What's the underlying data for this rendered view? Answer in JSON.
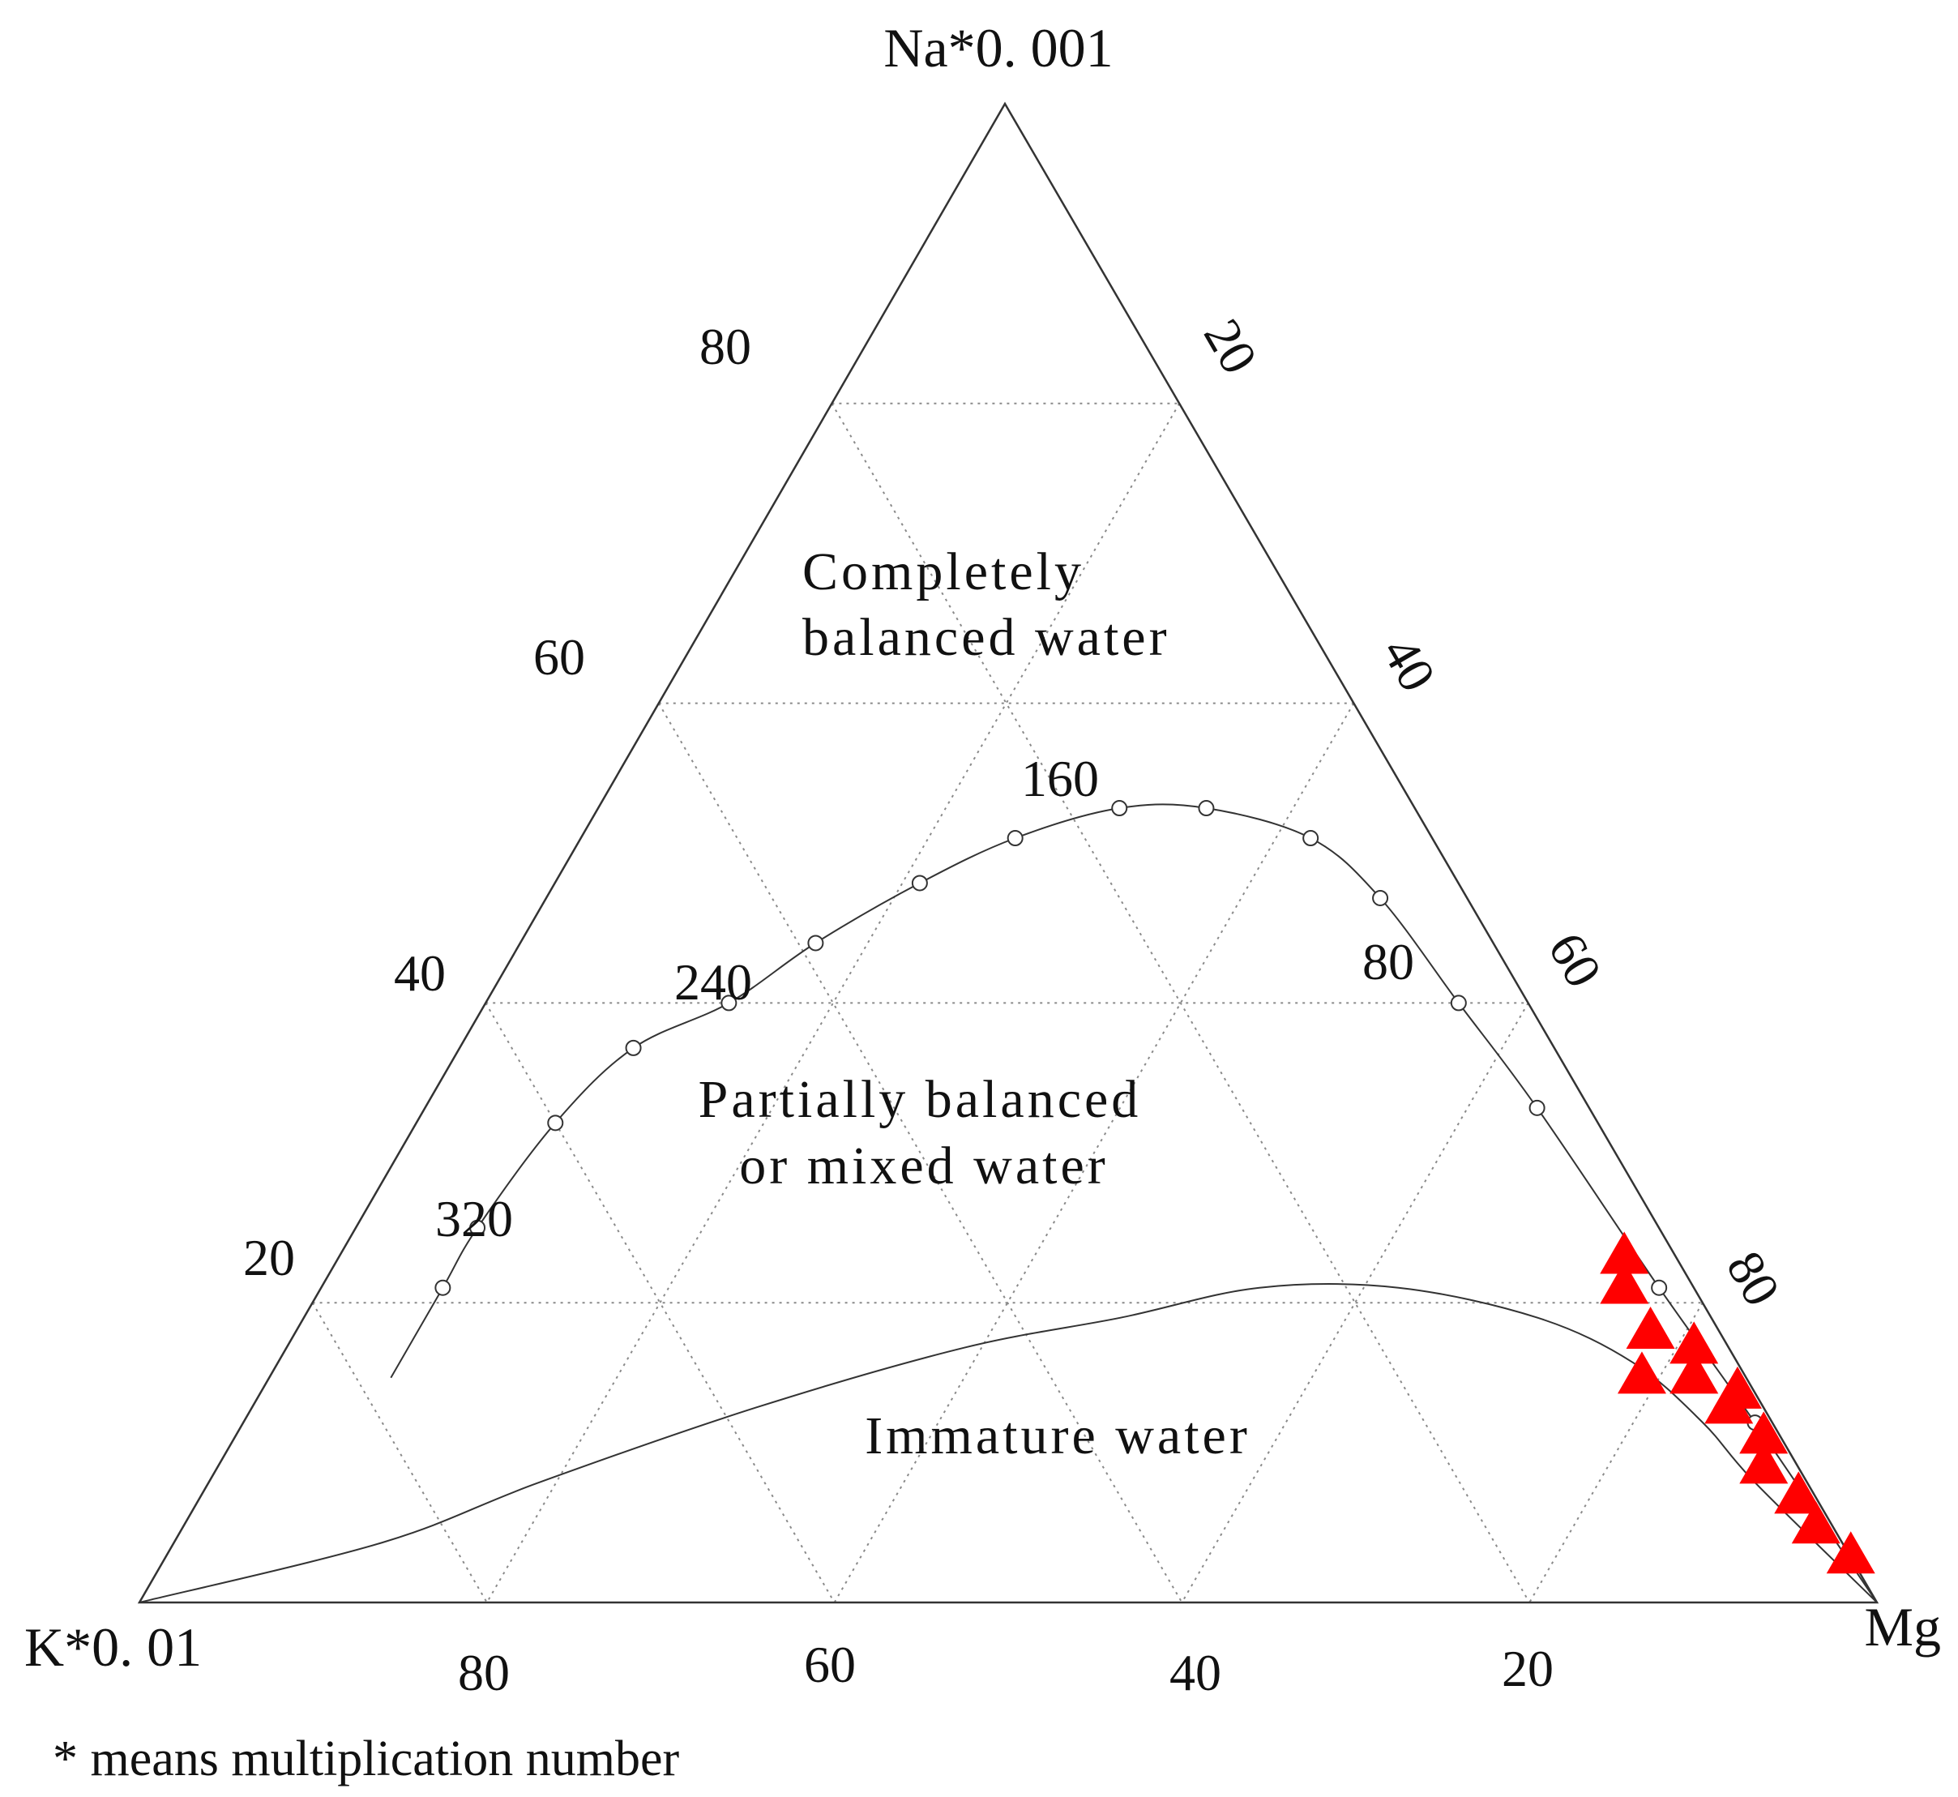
{
  "chart_data": {
    "type": "ternary",
    "vertices": {
      "top": "Na*0. 001",
      "left": "K*0. 01",
      "right": "Mg"
    },
    "ticks": {
      "left_edge": [
        "20",
        "40",
        "60",
        "80"
      ],
      "right_edge": [
        "20",
        "40",
        "60",
        "80"
      ],
      "bottom_edge": [
        "80",
        "60",
        "40",
        "20"
      ]
    },
    "grid": true,
    "regions": {
      "top": {
        "line1": "Completely",
        "line2": "balanced water"
      },
      "middle": {
        "line1": "Partially balanced",
        "line2": "or mixed water"
      },
      "bottom": "Immature water"
    },
    "equilibrium_curve": {
      "temperature_labels": [
        "160",
        "240",
        "80",
        "320"
      ],
      "points": [
        {
          "na": 15,
          "k": 78,
          "mg": 7
        },
        {
          "na": 21,
          "k": 72,
          "mg": 7
        },
        {
          "na": 25,
          "k": 68,
          "mg": 7
        },
        {
          "na": 32,
          "k": 60,
          "mg": 8
        },
        {
          "na": 37,
          "k": 53,
          "mg": 10
        },
        {
          "na": 40,
          "k": 46,
          "mg": 14
        },
        {
          "na": 44,
          "k": 39,
          "mg": 17
        },
        {
          "na": 48,
          "k": 31,
          "mg": 21
        },
        {
          "na": 51,
          "k": 24,
          "mg": 25
        },
        {
          "na": 53,
          "k": 17,
          "mg": 30
        },
        {
          "na": 53,
          "k": 12,
          "mg": 35
        },
        {
          "na": 51,
          "k": 7,
          "mg": 42
        },
        {
          "na": 47,
          "k": 5,
          "mg": 48
        },
        {
          "na": 40,
          "k": 4,
          "mg": 56
        },
        {
          "na": 33,
          "k": 3,
          "mg": 64
        },
        {
          "na": 21,
          "k": 2,
          "mg": 77
        },
        {
          "na": 12,
          "k": 1,
          "mg": 87
        },
        {
          "na": 0,
          "k": 0,
          "mg": 100
        }
      ],
      "marked_points": [
        {
          "na": 21,
          "k": 72,
          "mg": 7
        },
        {
          "na": 25,
          "k": 68,
          "mg": 7
        },
        {
          "na": 32,
          "k": 60,
          "mg": 8
        },
        {
          "na": 37,
          "k": 53,
          "mg": 10
        },
        {
          "na": 40,
          "k": 46,
          "mg": 14
        },
        {
          "na": 44,
          "k": 39,
          "mg": 17
        },
        {
          "na": 48,
          "k": 31,
          "mg": 21
        },
        {
          "na": 51,
          "k": 24,
          "mg": 25
        },
        {
          "na": 53,
          "k": 17,
          "mg": 30
        },
        {
          "na": 53,
          "k": 12,
          "mg": 35
        },
        {
          "na": 51,
          "k": 7,
          "mg": 42
        },
        {
          "na": 47,
          "k": 5,
          "mg": 48
        },
        {
          "na": 40,
          "k": 4,
          "mg": 56
        },
        {
          "na": 33,
          "k": 3,
          "mg": 64
        },
        {
          "na": 21,
          "k": 2,
          "mg": 77
        },
        {
          "na": 12,
          "k": 1,
          "mg": 87
        }
      ]
    },
    "partial_equilibrium_curve": {
      "points": [
        {
          "na": 0,
          "k": 100,
          "mg": 0
        },
        {
          "na": 4,
          "k": 84,
          "mg": 12
        },
        {
          "na": 8,
          "k": 73,
          "mg": 19
        },
        {
          "na": 13,
          "k": 58,
          "mg": 29
        },
        {
          "na": 17,
          "k": 44,
          "mg": 39
        },
        {
          "na": 19,
          "k": 34,
          "mg": 47
        },
        {
          "na": 21,
          "k": 25,
          "mg": 54
        },
        {
          "na": 21,
          "k": 17,
          "mg": 62
        },
        {
          "na": 19,
          "k": 10,
          "mg": 71
        },
        {
          "na": 16,
          "k": 6,
          "mg": 78
        },
        {
          "na": 12,
          "k": 4,
          "mg": 84
        },
        {
          "na": 8,
          "k": 3,
          "mg": 89
        },
        {
          "na": 0,
          "k": 0,
          "mg": 100
        }
      ]
    },
    "samples": {
      "marker": "triangle",
      "color": "#ff0000",
      "points": [
        {
          "na": 23,
          "k": 3,
          "mg": 74
        },
        {
          "na": 21,
          "k": 4,
          "mg": 75
        },
        {
          "na": 18,
          "k": 4,
          "mg": 78
        },
        {
          "na": 15,
          "k": 6,
          "mg": 79
        },
        {
          "na": 17,
          "k": 2,
          "mg": 81
        },
        {
          "na": 15,
          "k": 3,
          "mg": 82
        },
        {
          "na": 14,
          "k": 1,
          "mg": 85
        },
        {
          "na": 13,
          "k": 2,
          "mg": 85
        },
        {
          "na": 11,
          "k": 1,
          "mg": 88
        },
        {
          "na": 9,
          "k": 2,
          "mg": 89
        },
        {
          "na": 7,
          "k": 1,
          "mg": 92
        },
        {
          "na": 5,
          "k": 1,
          "mg": 94
        },
        {
          "na": 3,
          "k": 0,
          "mg": 97
        }
      ]
    },
    "footnote": "*  means multiplication number"
  }
}
